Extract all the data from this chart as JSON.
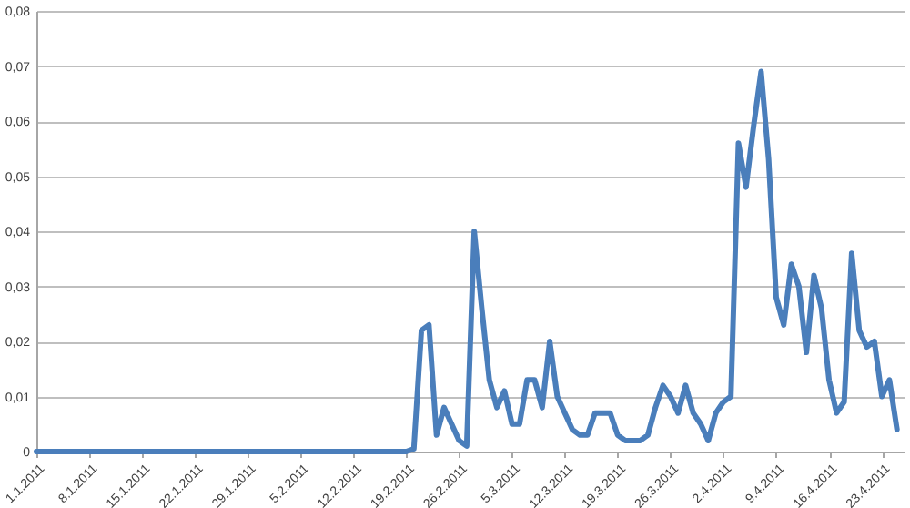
{
  "chart_data": {
    "type": "line",
    "color": "#4a7ebb",
    "line_style": "solid",
    "marker": "none",
    "grid": "y",
    "x": [
      "2011-01-01",
      "2011-01-02",
      "2011-01-03",
      "2011-01-04",
      "2011-01-05",
      "2011-01-06",
      "2011-01-07",
      "2011-01-08",
      "2011-01-09",
      "2011-01-10",
      "2011-01-11",
      "2011-01-12",
      "2011-01-13",
      "2011-01-14",
      "2011-01-15",
      "2011-01-16",
      "2011-01-17",
      "2011-01-18",
      "2011-01-19",
      "2011-01-20",
      "2011-01-21",
      "2011-01-22",
      "2011-01-23",
      "2011-01-24",
      "2011-01-25",
      "2011-01-26",
      "2011-01-27",
      "2011-01-28",
      "2011-01-29",
      "2011-01-30",
      "2011-01-31",
      "2011-02-01",
      "2011-02-02",
      "2011-02-03",
      "2011-02-04",
      "2011-02-05",
      "2011-02-06",
      "2011-02-07",
      "2011-02-08",
      "2011-02-09",
      "2011-02-10",
      "2011-02-11",
      "2011-02-12",
      "2011-02-13",
      "2011-02-14",
      "2011-02-15",
      "2011-02-16",
      "2011-02-17",
      "2011-02-18",
      "2011-02-19",
      "2011-02-20",
      "2011-02-21",
      "2011-02-22",
      "2011-02-23",
      "2011-02-24",
      "2011-02-25",
      "2011-02-26",
      "2011-02-27",
      "2011-02-28",
      "2011-03-01",
      "2011-03-02",
      "2011-03-03",
      "2011-03-04",
      "2011-03-05",
      "2011-03-06",
      "2011-03-07",
      "2011-03-08",
      "2011-03-09",
      "2011-03-10",
      "2011-03-11",
      "2011-03-12",
      "2011-03-13",
      "2011-03-14",
      "2011-03-15",
      "2011-03-16",
      "2011-03-17",
      "2011-03-18",
      "2011-03-19",
      "2011-03-20",
      "2011-03-21",
      "2011-03-22",
      "2011-03-23",
      "2011-03-24",
      "2011-03-25",
      "2011-03-26",
      "2011-03-27",
      "2011-03-28",
      "2011-03-29",
      "2011-03-30",
      "2011-03-31",
      "2011-04-01",
      "2011-04-02",
      "2011-04-03",
      "2011-04-04",
      "2011-04-05",
      "2011-04-06",
      "2011-04-07",
      "2011-04-08",
      "2011-04-09",
      "2011-04-10",
      "2011-04-11",
      "2011-04-12",
      "2011-04-13",
      "2011-04-14",
      "2011-04-15",
      "2011-04-16",
      "2011-04-17",
      "2011-04-18",
      "2011-04-19",
      "2011-04-20",
      "2011-04-21",
      "2011-04-22",
      "2011-04-23",
      "2011-04-24",
      "2011-04-25"
    ],
    "values": [
      0,
      0,
      0,
      0,
      0,
      0,
      0,
      0,
      0,
      0,
      0,
      0,
      0,
      0,
      0,
      0,
      0,
      0,
      0,
      0,
      0,
      0,
      0,
      0,
      0,
      0,
      0,
      0,
      0,
      0,
      0,
      0,
      0,
      0,
      0,
      0,
      0,
      0,
      0,
      0,
      0,
      0,
      0,
      0,
      0,
      0,
      0,
      0,
      0,
      0,
      0.0005,
      0.022,
      0.023,
      0.003,
      0.008,
      0.005,
      0.002,
      0.001,
      0.04,
      0.026,
      0.013,
      0.008,
      0.011,
      0.005,
      0.005,
      0.013,
      0.013,
      0.008,
      0.02,
      0.01,
      0.007,
      0.004,
      0.003,
      0.003,
      0.007,
      0.007,
      0.007,
      0.003,
      0.002,
      0.002,
      0.002,
      0.003,
      0.008,
      0.012,
      0.01,
      0.007,
      0.012,
      0.007,
      0.005,
      0.002,
      0.007,
      0.009,
      0.01,
      0.056,
      0.048,
      0.059,
      0.069,
      0.053,
      0.028,
      0.023,
      0.034,
      0.03,
      0.018,
      0.032,
      0.026,
      0.013,
      0.007,
      0.009,
      0.036,
      0.022,
      0.019,
      0.02,
      0.01,
      0.013,
      0.004
    ],
    "xlim": [
      "2011-01-01",
      "2011-04-26"
    ],
    "xticks": [
      {
        "value": "2011-01-01",
        "label": "1.1.2011"
      },
      {
        "value": "2011-01-08",
        "label": "8.1.2011"
      },
      {
        "value": "2011-01-15",
        "label": "15.1.2011"
      },
      {
        "value": "2011-01-22",
        "label": "22.1.2011"
      },
      {
        "value": "2011-01-29",
        "label": "29.1.2011"
      },
      {
        "value": "2011-02-05",
        "label": "5.2.2011"
      },
      {
        "value": "2011-02-12",
        "label": "12.2.2011"
      },
      {
        "value": "2011-02-19",
        "label": "19.2.2011"
      },
      {
        "value": "2011-02-26",
        "label": "26.2.2011"
      },
      {
        "value": "2011-03-05",
        "label": "5.3.2011"
      },
      {
        "value": "2011-03-12",
        "label": "12.3.2011"
      },
      {
        "value": "2011-03-19",
        "label": "19.3.2011"
      },
      {
        "value": "2011-03-26",
        "label": "26.3.2011"
      },
      {
        "value": "2011-04-02",
        "label": "2.4.2011"
      },
      {
        "value": "2011-04-09",
        "label": "9.4.2011"
      },
      {
        "value": "2011-04-16",
        "label": "16.4.2011"
      },
      {
        "value": "2011-04-23",
        "label": "23.4.2011"
      }
    ],
    "ylim": [
      0,
      0.08
    ],
    "yticks": [
      0,
      {
        "value": 0.01,
        "label": "0,01"
      },
      {
        "value": 0.02,
        "label": "0,02"
      },
      {
        "value": 0.03,
        "label": "0,03"
      },
      {
        "value": 0.04,
        "label": "0,04"
      },
      {
        "value": 0.05,
        "label": "0,05"
      },
      {
        "value": 0.06,
        "label": "0,06"
      },
      {
        "value": 0.07,
        "label": "0,07"
      },
      {
        "value": 0.08,
        "label": "0,08"
      }
    ]
  }
}
